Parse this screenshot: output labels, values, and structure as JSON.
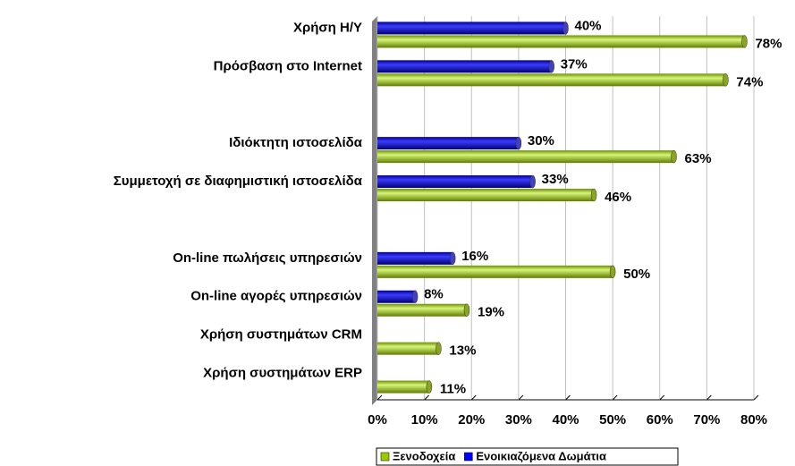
{
  "chart_data": {
    "type": "bar",
    "orientation": "horizontal",
    "categories": [
      "Χρήση Η/Υ",
      "Πρόσβαση στο Internet",
      null,
      "Ιδιόκτητη ιστοσελίδα",
      "Συμμετοχή σε διαφημιστική ιστοσελίδα",
      null,
      "On-line πωλήσεις υπηρεσιών",
      "On-line αγορές υπηρεσιών",
      "Χρήση συστημάτων CRM",
      "Χρήση συστημάτων ERP"
    ],
    "series": [
      {
        "name": "Ξενοδοχεία",
        "color": "#99cc00",
        "values": [
          78,
          74,
          null,
          63,
          46,
          null,
          50,
          19,
          13,
          11
        ],
        "value_labels": [
          "78%",
          "74%",
          null,
          "63%",
          "46%",
          null,
          "50%",
          "19%",
          "13%",
          "11%"
        ]
      },
      {
        "name": "Ενοικιαζόμενα Δωμάτια",
        "color": "#0000ff",
        "values": [
          40,
          37,
          null,
          30,
          33,
          null,
          16,
          8,
          null,
          null
        ],
        "value_labels": [
          "40%",
          "37%",
          null,
          "30%",
          "33%",
          null,
          "16%",
          "8%",
          null,
          null
        ]
      }
    ],
    "xlim": [
      0,
      80
    ],
    "xticks": [
      {
        "value": 0,
        "label": "0%"
      },
      {
        "value": 10,
        "label": "10%"
      },
      {
        "value": 20,
        "label": "20%"
      },
      {
        "value": 30,
        "label": "30%"
      },
      {
        "value": 40,
        "label": "40%"
      },
      {
        "value": 50,
        "label": "50%"
      },
      {
        "value": 60,
        "label": "60%"
      },
      {
        "value": 70,
        "label": "70%"
      },
      {
        "value": 80,
        "label": "80%"
      }
    ],
    "grid": true,
    "legend": "bottom"
  }
}
